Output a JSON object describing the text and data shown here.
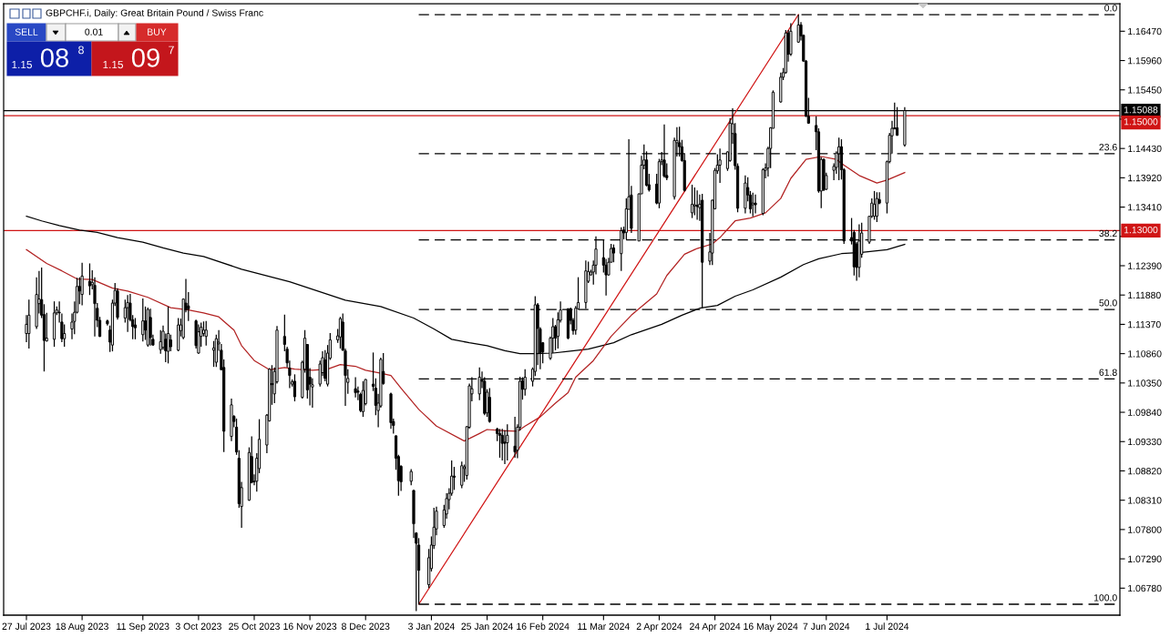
{
  "chart_data": {
    "type": "candlestick",
    "title": "GBPCHF.i, Daily: Great Britain Pound / Swiss Franc",
    "color": "#000000",
    "x": [
      "2023-07-27",
      "2023-07-28",
      "2023-07-31",
      "2023-08-01",
      "2023-08-02",
      "2023-08-03",
      "2023-08-04",
      "2023-08-07",
      "2023-08-08",
      "2023-08-09",
      "2023-08-10",
      "2023-08-11",
      "2023-08-14",
      "2023-08-15",
      "2023-08-16",
      "2023-08-17",
      "2023-08-18",
      "2023-08-21",
      "2023-08-22",
      "2023-08-23",
      "2023-08-24",
      "2023-08-25",
      "2023-08-28",
      "2023-08-29",
      "2023-08-30",
      "2023-08-31",
      "2023-09-01",
      "2023-09-04",
      "2023-09-05",
      "2023-09-06",
      "2023-09-07",
      "2023-09-08",
      "2023-09-11",
      "2023-09-12",
      "2023-09-13",
      "2023-09-14",
      "2023-09-15",
      "2023-09-18",
      "2023-09-19",
      "2023-09-20",
      "2023-09-21",
      "2023-09-22",
      "2023-09-25",
      "2023-09-26",
      "2023-09-27",
      "2023-09-28",
      "2023-09-29",
      "2023-10-02",
      "2023-10-03",
      "2023-10-04",
      "2023-10-05",
      "2023-10-06",
      "2023-10-09",
      "2023-10-10",
      "2023-10-11",
      "2023-10-12",
      "2023-10-13",
      "2023-10-16",
      "2023-10-17",
      "2023-10-18",
      "2023-10-19",
      "2023-10-20",
      "2023-10-23",
      "2023-10-24",
      "2023-10-25",
      "2023-10-26",
      "2023-10-27",
      "2023-10-30",
      "2023-10-31",
      "2023-11-01",
      "2023-11-02",
      "2023-11-03",
      "2023-11-06",
      "2023-11-07",
      "2023-11-08",
      "2023-11-09",
      "2023-11-10",
      "2023-11-13",
      "2023-11-14",
      "2023-11-15",
      "2023-11-16",
      "2023-11-17",
      "2023-11-20",
      "2023-11-21",
      "2023-11-22",
      "2023-11-23",
      "2023-11-24",
      "2023-11-27",
      "2023-11-28",
      "2023-11-29",
      "2023-11-30",
      "2023-12-01",
      "2023-12-04",
      "2023-12-05",
      "2023-12-06",
      "2023-12-07",
      "2023-12-08",
      "2023-12-11",
      "2023-12-12",
      "2023-12-13",
      "2023-12-14",
      "2023-12-15",
      "2023-12-18",
      "2023-12-19",
      "2023-12-20",
      "2023-12-21",
      "2023-12-22",
      "2023-12-26",
      "2023-12-27",
      "2023-12-28",
      "2023-12-29",
      "2024-01-02",
      "2024-01-03",
      "2024-01-04",
      "2024-01-05",
      "2024-01-08",
      "2024-01-09",
      "2024-01-10",
      "2024-01-11",
      "2024-01-12",
      "2024-01-15",
      "2024-01-16",
      "2024-01-17",
      "2024-01-18",
      "2024-01-19",
      "2024-01-22",
      "2024-01-23",
      "2024-01-24",
      "2024-01-25",
      "2024-01-26",
      "2024-01-29",
      "2024-01-30",
      "2024-01-31",
      "2024-02-01",
      "2024-02-02",
      "2024-02-05",
      "2024-02-06",
      "2024-02-07",
      "2024-02-08",
      "2024-02-09",
      "2024-02-12",
      "2024-02-13",
      "2024-02-14",
      "2024-02-15",
      "2024-02-16",
      "2024-02-19",
      "2024-02-20",
      "2024-02-21",
      "2024-02-22",
      "2024-02-23",
      "2024-02-26",
      "2024-02-27",
      "2024-02-28",
      "2024-02-29",
      "2024-03-01",
      "2024-03-04",
      "2024-03-05",
      "2024-03-06",
      "2024-03-07",
      "2024-03-08",
      "2024-03-11",
      "2024-03-12",
      "2024-03-13",
      "2024-03-14",
      "2024-03-15",
      "2024-03-18",
      "2024-03-19",
      "2024-03-20",
      "2024-03-21",
      "2024-03-22",
      "2024-03-25",
      "2024-03-26",
      "2024-03-27",
      "2024-03-28",
      "2024-03-29",
      "2024-04-01",
      "2024-04-02",
      "2024-04-03",
      "2024-04-04",
      "2024-04-05",
      "2024-04-08",
      "2024-04-09",
      "2024-04-10",
      "2024-04-11",
      "2024-04-12",
      "2024-04-15",
      "2024-04-16",
      "2024-04-17",
      "2024-04-18",
      "2024-04-19",
      "2024-04-22",
      "2024-04-23",
      "2024-04-24",
      "2024-04-25",
      "2024-04-26",
      "2024-04-29",
      "2024-04-30",
      "2024-05-01",
      "2024-05-02",
      "2024-05-03",
      "2024-05-06",
      "2024-05-07",
      "2024-05-08",
      "2024-05-09",
      "2024-05-10",
      "2024-05-13",
      "2024-05-14",
      "2024-05-15",
      "2024-05-16",
      "2024-05-17",
      "2024-05-20",
      "2024-05-21",
      "2024-05-22",
      "2024-05-23",
      "2024-05-24",
      "2024-05-27",
      "2024-05-28",
      "2024-05-29",
      "2024-05-30",
      "2024-05-31",
      "2024-06-03",
      "2024-06-04",
      "2024-06-05",
      "2024-06-06",
      "2024-06-07",
      "2024-06-10",
      "2024-06-11",
      "2024-06-12",
      "2024-06-13",
      "2024-06-14",
      "2024-06-17",
      "2024-06-18",
      "2024-06-19",
      "2024-06-20",
      "2024-06-21",
      "2024-06-24",
      "2024-06-25",
      "2024-06-26",
      "2024-06-27",
      "2024-06-28",
      "2024-07-01",
      "2024-07-02",
      "2024-07-03",
      "2024-07-04",
      "2024-07-05",
      "2024-07-08"
    ],
    "ohlc": [
      [
        1.1121,
        1.1153,
        1.1106,
        1.1137
      ],
      [
        1.1121,
        1.118,
        1.1095,
        1.1153
      ],
      [
        1.1133,
        1.1219,
        1.1129,
        1.1189
      ],
      [
        1.1173,
        1.123,
        1.1156,
        1.1181
      ],
      [
        1.118,
        1.1236,
        1.1148,
        1.1153
      ],
      [
        1.1154,
        1.1172,
        1.1055,
        1.1109
      ],
      [
        1.1108,
        1.1157,
        1.1107,
        1.1113
      ],
      [
        1.1111,
        1.1177,
        1.1098,
        1.1157
      ],
      [
        1.1157,
        1.1168,
        1.1153,
        1.1162
      ],
      [
        1.1158,
        1.1177,
        1.114,
        1.1157
      ],
      [
        1.1141,
        1.1156,
        1.1106,
        1.1112
      ],
      [
        1.1112,
        1.1137,
        1.1098,
        1.1121
      ],
      [
        1.1129,
        1.1156,
        1.1111,
        1.1141
      ],
      [
        1.1142,
        1.1177,
        1.112,
        1.1158
      ],
      [
        1.1158,
        1.1218,
        1.1156,
        1.1203
      ],
      [
        1.1203,
        1.1219,
        1.1172,
        1.1195
      ],
      [
        1.1189,
        1.1244,
        1.117,
        1.1221
      ],
      [
        1.1212,
        1.1243,
        1.1188,
        1.1204
      ],
      [
        1.1206,
        1.1231,
        1.1198,
        1.121
      ],
      [
        1.1205,
        1.1219,
        1.1116,
        1.1173
      ],
      [
        1.1165,
        1.1174,
        1.1132,
        1.1144
      ],
      [
        1.1144,
        1.115,
        1.1115,
        1.1116
      ],
      [
        1.1143,
        1.1145,
        1.1135,
        1.1138
      ],
      [
        1.1127,
        1.1135,
        1.1089,
        1.1106
      ],
      [
        1.1101,
        1.118,
        1.109,
        1.1174
      ],
      [
        1.1174,
        1.1209,
        1.1169,
        1.1196
      ],
      [
        1.1195,
        1.12,
        1.1145,
        1.1149
      ],
      [
        1.1148,
        1.118,
        1.114,
        1.1166
      ],
      [
        1.1166,
        1.1188,
        1.1124,
        1.1175
      ],
      [
        1.1174,
        1.119,
        1.1142,
        1.1145
      ],
      [
        1.1145,
        1.1153,
        1.1111,
        1.1133
      ],
      [
        1.1136,
        1.1148,
        1.1111,
        1.1131
      ],
      [
        1.1119,
        1.1182,
        1.1107,
        1.1143
      ],
      [
        1.1143,
        1.1168,
        1.111,
        1.1127
      ],
      [
        1.1101,
        1.1166,
        1.1098,
        1.1163
      ],
      [
        1.1149,
        1.1164,
        1.11,
        1.1114
      ],
      [
        1.1111,
        1.1119,
        1.11,
        1.1101
      ],
      [
        1.1093,
        1.1127,
        1.1086,
        1.1107
      ],
      [
        1.1097,
        1.1135,
        1.1093,
        1.1125
      ],
      [
        1.1111,
        1.1121,
        1.1071,
        1.1091
      ],
      [
        1.109,
        1.1168,
        1.1069,
        1.1121
      ],
      [
        1.111,
        1.1119,
        1.109,
        1.1098
      ],
      [
        1.1092,
        1.1148,
        1.109,
        1.1136
      ],
      [
        1.1126,
        1.1147,
        1.1116,
        1.1136
      ],
      [
        1.1114,
        1.1182,
        1.1111,
        1.1181
      ],
      [
        1.1174,
        1.1216,
        1.1158,
        1.1162
      ],
      [
        1.1169,
        1.1193,
        1.1143,
        1.1164
      ],
      [
        1.1143,
        1.1145,
        1.1095,
        1.11
      ],
      [
        1.1087,
        1.1137,
        1.1086,
        1.1124
      ],
      [
        1.1116,
        1.114,
        1.1098,
        1.1132
      ],
      [
        1.1121,
        1.1142,
        1.1116,
        1.1127
      ],
      [
        1.1116,
        1.1143,
        1.11,
        1.1127
      ],
      [
        1.1092,
        1.1108,
        1.1063,
        1.1096
      ],
      [
        1.1071,
        1.1119,
        1.1063,
        1.1112
      ],
      [
        1.1103,
        1.1127,
        1.1091,
        1.1106
      ],
      [
        1.1092,
        1.1103,
        1.1057,
        1.1058
      ],
      [
        1.1062,
        1.1076,
        1.0915,
        1.0951
      ],
      [
        1.0942,
        1.1008,
        1.0934,
        1.0997
      ],
      [
        1.0977,
        1.0979,
        1.0958,
        1.0968
      ],
      [
        1.0958,
        1.0973,
        1.091,
        1.0915
      ],
      [
        1.0904,
        1.0918,
        1.0818,
        1.0825
      ],
      [
        1.082,
        1.0863,
        1.0783,
        1.0853
      ],
      [
        1.0831,
        1.0923,
        1.083,
        1.0914
      ],
      [
        1.0907,
        1.0942,
        1.086,
        1.0862
      ],
      [
        1.0864,
        1.0876,
        1.0857,
        1.0863
      ],
      [
        1.0864,
        1.0913,
        1.0846,
        1.0904
      ],
      [
        1.0886,
        1.0972,
        1.0878,
        1.0937
      ],
      [
        1.0927,
        1.0981,
        1.0913,
        1.0979
      ],
      [
        1.0969,
        1.1061,
        1.0968,
        1.1059
      ],
      [
        1.1034,
        1.1066,
        1.0997,
        1.1032
      ],
      [
        1.1016,
        1.1062,
        1.1,
        1.1055
      ],
      [
        1.1037,
        1.1134,
        1.1034,
        1.1127
      ],
      [
        1.1116,
        1.1154,
        1.109,
        1.1102
      ],
      [
        1.1094,
        1.1098,
        1.1062,
        1.107
      ],
      [
        1.1061,
        1.1074,
        1.1026,
        1.1048
      ],
      [
        1.1033,
        1.1041,
        1.1029,
        1.1037
      ],
      [
        1.1038,
        1.105,
        1.1003,
        1.1011
      ],
      [
        1.101,
        1.1074,
        1.1008,
        1.1071
      ],
      [
        1.1059,
        1.1127,
        1.1053,
        1.1113
      ],
      [
        1.1102,
        1.1103,
        1.1008,
        1.1023
      ],
      [
        1.1045,
        1.1061,
        1.0996,
        1.1033
      ],
      [
        1.1028,
        1.1043,
        1.0992,
        1.1032
      ],
      [
        1.1033,
        1.1074,
        1.1029,
        1.1068
      ],
      [
        1.1053,
        1.109,
        1.1047,
        1.1079
      ],
      [
        1.1075,
        1.1092,
        1.1038,
        1.1043
      ],
      [
        1.1033,
        1.1101,
        1.1029,
        1.1087
      ],
      [
        1.1078,
        1.1122,
        1.1075,
        1.111
      ],
      [
        1.111,
        1.1129,
        1.1105,
        1.1117
      ],
      [
        1.1115,
        1.115,
        1.1095,
        1.1147
      ],
      [
        1.1141,
        1.1156,
        1.1091,
        1.1092
      ],
      [
        1.1091,
        1.1095,
        1.0995,
        1.1048
      ],
      [
        1.1036,
        1.1059,
        1.1016,
        1.1043
      ],
      [
        1.1025,
        1.1045,
        1.101,
        1.1018
      ],
      [
        1.1021,
        1.1029,
        1.1005,
        1.1019
      ],
      [
        1.1015,
        1.1018,
        1.0984,
        1.0987
      ],
      [
        1.0985,
        1.1038,
        1.0976,
        1.1022
      ],
      [
        1.0999,
        1.1042,
        1.0996,
        1.1041
      ],
      [
        1.1033,
        1.1088,
        1.1021,
        1.1029
      ],
      [
        1.1026,
        1.1043,
        1.0979,
        1.0996
      ],
      [
        1.0987,
        1.1016,
        1.0958,
        1.1
      ],
      [
        1.0995,
        1.1079,
        1.0992,
        1.1076
      ],
      [
        1.1055,
        1.1087,
        1.1032,
        1.1034
      ],
      [
        1.1016,
        1.1018,
        1.0955,
        1.0966
      ],
      [
        1.0968,
        1.0973,
        1.0947,
        1.0961
      ],
      [
        1.0943,
        1.0944,
        1.0884,
        1.0904
      ],
      [
        1.0907,
        1.091,
        1.0839,
        1.0865
      ],
      [
        1.089,
        1.0892,
        1.0847,
        1.0863
      ],
      [
        1.0864,
        1.0885,
        1.0857,
        1.0881
      ],
      [
        1.0848,
        1.0849,
        1.0765,
        1.079
      ],
      [
        1.0774,
        1.0775,
        1.0638,
        1.0756
      ],
      [
        1.0753,
        1.0765,
        1.065,
        1.0709
      ],
      [
        1.0684,
        1.0746,
        1.0678,
        1.0731
      ],
      [
        1.0712,
        1.0768,
        1.0707,
        1.0753
      ],
      [
        1.0752,
        1.0818,
        1.0746,
        1.0784
      ],
      [
        1.0781,
        1.082,
        1.077,
        1.0812
      ],
      [
        1.0787,
        1.0823,
        1.0783,
        1.0814
      ],
      [
        1.0807,
        1.0843,
        1.0799,
        1.0834
      ],
      [
        1.0832,
        1.0852,
        1.0815,
        1.0843
      ],
      [
        1.0843,
        1.09,
        1.0839,
        1.0873
      ],
      [
        1.0873,
        1.0889,
        1.0849,
        1.0871
      ],
      [
        1.0857,
        1.0898,
        1.0852,
        1.0891
      ],
      [
        1.0886,
        1.0893,
        1.0863,
        1.0889
      ],
      [
        1.0874,
        1.096,
        1.0867,
        1.0959
      ],
      [
        1.0958,
        1.1034,
        1.0955,
        1.103
      ],
      [
        1.1016,
        1.1045,
        1.1003,
        1.1025
      ],
      [
        1.1016,
        1.1062,
        1.1005,
        1.1045
      ],
      [
        1.1041,
        1.1055,
        1.1026,
        1.1038
      ],
      [
        1.1038,
        1.1045,
        1.0979,
        1.0982
      ],
      [
        1.0983,
        1.1024,
        1.0976,
        1.1019
      ],
      [
        1.101,
        1.1026,
        1.0966,
        1.0968
      ],
      [
        1.0955,
        1.0957,
        1.0934,
        1.0947
      ],
      [
        1.0947,
        1.0955,
        1.0905,
        1.0944
      ],
      [
        1.0944,
        1.0955,
        1.09,
        1.093
      ],
      [
        1.0932,
        1.0953,
        1.0894,
        1.093
      ],
      [
        1.0931,
        1.0963,
        1.09,
        1.0944
      ],
      [
        1.0925,
        1.0976,
        1.0905,
        1.0915
      ],
      [
        1.0918,
        1.0963,
        1.0904,
        1.0958
      ],
      [
        1.0958,
        1.1046,
        1.0952,
        1.1038
      ],
      [
        1.1039,
        1.1045,
        1.1006,
        1.1024
      ],
      [
        1.1024,
        1.1059,
        1.1013,
        1.1045
      ],
      [
        1.1038,
        1.1062,
        1.1029,
        1.1059
      ],
      [
        1.1055,
        1.1186,
        1.1047,
        1.1171
      ],
      [
        1.1171,
        1.1174,
        1.1066,
        1.113
      ],
      [
        1.1129,
        1.1132,
        1.1059,
        1.1087
      ],
      [
        1.1105,
        1.1106,
        1.1069,
        1.1089
      ],
      [
        1.1078,
        1.1116,
        1.1075,
        1.1113
      ],
      [
        1.1113,
        1.1148,
        1.1087,
        1.1133
      ],
      [
        1.1133,
        1.1136,
        1.1092,
        1.1113
      ],
      [
        1.1116,
        1.1158,
        1.1095,
        1.1145
      ],
      [
        1.1144,
        1.1177,
        1.114,
        1.1162
      ],
      [
        1.1164,
        1.1165,
        1.1111,
        1.1113
      ],
      [
        1.1164,
        1.1166,
        1.1137,
        1.1144
      ],
      [
        1.1144,
        1.1148,
        1.1119,
        1.1126
      ],
      [
        1.1127,
        1.1169,
        1.1119,
        1.1165
      ],
      [
        1.1164,
        1.1219,
        1.1164,
        1.1175
      ],
      [
        1.1175,
        1.1248,
        1.1164,
        1.123
      ],
      [
        1.1212,
        1.1246,
        1.1209,
        1.1229
      ],
      [
        1.1223,
        1.1232,
        1.1222,
        1.1228
      ],
      [
        1.1228,
        1.1248,
        1.1206,
        1.124
      ],
      [
        1.124,
        1.129,
        1.1224,
        1.1268
      ],
      [
        1.1253,
        1.1284,
        1.1227,
        1.124
      ],
      [
        1.124,
        1.1251,
        1.1187,
        1.1223
      ],
      [
        1.1223,
        1.1253,
        1.1222,
        1.1245
      ],
      [
        1.1245,
        1.1277,
        1.1245,
        1.1269
      ],
      [
        1.127,
        1.1276,
        1.1245,
        1.1261
      ],
      [
        1.126,
        1.1306,
        1.123,
        1.13
      ],
      [
        1.1301,
        1.1307,
        1.1285,
        1.1296
      ],
      [
        1.1297,
        1.1356,
        1.1285,
        1.1338
      ],
      [
        1.1337,
        1.1459,
        1.1337,
        1.1359
      ],
      [
        1.1362,
        1.1378,
        1.1296,
        1.1304
      ],
      [
        1.1282,
        1.1365,
        1.1282,
        1.1364
      ],
      [
        1.1364,
        1.143,
        1.1364,
        1.1414
      ],
      [
        1.1414,
        1.145,
        1.1407,
        1.1423
      ],
      [
        1.1423,
        1.1438,
        1.1377,
        1.1379
      ],
      [
        1.138,
        1.1399,
        1.1368,
        1.1371
      ],
      [
        1.1381,
        1.1399,
        1.1346,
        1.1348
      ],
      [
        1.1348,
        1.1425,
        1.1339,
        1.142
      ],
      [
        1.142,
        1.1437,
        1.1414,
        1.1423
      ],
      [
        1.1423,
        1.1485,
        1.1392,
        1.1395
      ],
      [
        1.1396,
        1.1417,
        1.1388,
        1.1392
      ],
      [
        1.1359,
        1.1462,
        1.1354,
        1.1457
      ],
      [
        1.1453,
        1.148,
        1.1429,
        1.1457
      ],
      [
        1.1453,
        1.1481,
        1.1429,
        1.1446
      ],
      [
        1.1446,
        1.1458,
        1.142,
        1.1422
      ],
      [
        1.1422,
        1.1435,
        1.1368,
        1.137
      ],
      [
        1.1331,
        1.138,
        1.1322,
        1.1346
      ],
      [
        1.1343,
        1.1375,
        1.1327,
        1.1345
      ],
      [
        1.1344,
        1.137,
        1.1319,
        1.1342
      ],
      [
        1.134,
        1.1363,
        1.1317,
        1.1346
      ],
      [
        1.1353,
        1.1364,
        1.1165,
        1.1245
      ],
      [
        1.1247,
        1.1296,
        1.124,
        1.1263
      ],
      [
        1.1261,
        1.1354,
        1.124,
        1.1353
      ],
      [
        1.1338,
        1.1409,
        1.1337,
        1.1405
      ],
      [
        1.1404,
        1.1433,
        1.1399,
        1.1414
      ],
      [
        1.1414,
        1.1443,
        1.1383,
        1.1423
      ],
      [
        1.1408,
        1.1438,
        1.1404,
        1.1437
      ],
      [
        1.1422,
        1.1496,
        1.142,
        1.1487
      ],
      [
        1.1469,
        1.1513,
        1.1451,
        1.1486
      ],
      [
        1.1469,
        1.1487,
        1.1406,
        1.1413
      ],
      [
        1.1412,
        1.1417,
        1.1332,
        1.1339
      ],
      [
        1.1339,
        1.1396,
        1.133,
        1.1383
      ],
      [
        1.1375,
        1.1393,
        1.1351,
        1.1362
      ],
      [
        1.1362,
        1.1369,
        1.133,
        1.1338
      ],
      [
        1.1345,
        1.1366,
        1.1325,
        1.1348
      ],
      [
        1.1348,
        1.1363,
        1.133,
        1.1345
      ],
      [
        1.133,
        1.1409,
        1.1327,
        1.1406
      ],
      [
        1.1405,
        1.1417,
        1.1391,
        1.1409
      ],
      [
        1.1409,
        1.1446,
        1.1394,
        1.1443
      ],
      [
        1.1443,
        1.148,
        1.1409,
        1.1479
      ],
      [
        1.1478,
        1.1544,
        1.1478,
        1.1541
      ],
      [
        1.1524,
        1.1575,
        1.1523,
        1.1567
      ],
      [
        1.1567,
        1.1583,
        1.1562,
        1.1575
      ],
      [
        1.1575,
        1.1649,
        1.1573,
        1.1644
      ],
      [
        1.1644,
        1.1649,
        1.1594,
        1.1607
      ],
      [
        1.1607,
        1.1661,
        1.1604,
        1.1647
      ],
      [
        1.1628,
        1.1676,
        1.1627,
        1.1658
      ],
      [
        1.1658,
        1.1663,
        1.1631,
        1.1639
      ],
      [
        1.164,
        1.1641,
        1.1594,
        1.1595
      ],
      [
        1.1595,
        1.1597,
        1.1498,
        1.1499
      ],
      [
        1.1499,
        1.1531,
        1.1486,
        1.1487
      ],
      [
        1.1483,
        1.1499,
        1.144,
        1.1472
      ],
      [
        1.1472,
        1.1478,
        1.1366,
        1.1369
      ],
      [
        1.1369,
        1.1428,
        1.1339,
        1.1424
      ],
      [
        1.1424,
        1.1426,
        1.1369,
        1.1371
      ],
      [
        1.1372,
        1.1401,
        1.1371,
        1.1396
      ],
      [
        1.1405,
        1.1417,
        1.1388,
        1.1412
      ],
      [
        1.141,
        1.1438,
        1.1399,
        1.1435
      ],
      [
        1.1434,
        1.1462,
        1.1388,
        1.1446
      ],
      [
        1.1446,
        1.1459,
        1.1389,
        1.1406
      ],
      [
        1.1406,
        1.1409,
        1.1277,
        1.1282
      ],
      [
        1.1288,
        1.1322,
        1.1276,
        1.1282
      ],
      [
        1.1297,
        1.1301,
        1.1222,
        1.1237
      ],
      [
        1.1277,
        1.128,
        1.1213,
        1.1236
      ],
      [
        1.1236,
        1.1311,
        1.1219,
        1.1282
      ],
      [
        1.1259,
        1.1314,
        1.1253,
        1.1296
      ],
      [
        1.128,
        1.1325,
        1.1277,
        1.1325
      ],
      [
        1.1325,
        1.1356,
        1.1322,
        1.1348
      ],
      [
        1.1325,
        1.1369,
        1.1319,
        1.1346
      ],
      [
        1.1325,
        1.1367,
        1.1315,
        1.1356
      ],
      [
        1.1354,
        1.1367,
        1.1346,
        1.1348
      ],
      [
        1.1348,
        1.1422,
        1.133,
        1.142
      ],
      [
        1.142,
        1.147,
        1.1417,
        1.1466
      ],
      [
        1.1465,
        1.1491,
        1.1434,
        1.1478
      ],
      [
        1.1479,
        1.1523,
        1.1477,
        1.1477
      ],
      [
        1.1479,
        1.1515,
        1.1465,
        1.1466
      ],
      [
        1.1449,
        1.1515,
        1.1446,
        1.1509
      ]
    ],
    "series": [
      {
        "type": "line",
        "color": "#000000",
        "x": [
          "2023-07-27",
          "2023-08-02",
          "2023-08-09",
          "2023-08-17",
          "2023-08-24",
          "2023-09-01",
          "2023-09-11",
          "2023-09-19",
          "2023-09-27",
          "2023-10-05",
          "2023-10-20",
          "2023-11-08",
          "2023-11-30",
          "2023-12-14",
          "2023-12-27",
          "2024-01-04",
          "2024-01-11",
          "2024-01-18",
          "2024-01-25",
          "2024-02-01",
          "2024-02-07",
          "2024-02-13",
          "2024-02-20",
          "2024-02-26",
          "2024-03-05",
          "2024-03-15",
          "2024-03-22",
          "2024-04-03",
          "2024-04-11",
          "2024-04-18",
          "2024-04-25",
          "2024-05-02",
          "2024-05-09",
          "2024-05-20",
          "2024-05-29",
          "2024-06-04",
          "2024-06-13",
          "2024-06-21",
          "2024-07-01",
          "2024-07-08"
        ],
        "values": [
          1.1325,
          1.1317,
          1.1309,
          1.1301,
          1.1297,
          1.1288,
          1.128,
          1.127,
          1.1261,
          1.1255,
          1.1233,
          1.1211,
          1.1179,
          1.1168,
          1.1148,
          1.1129,
          1.1111,
          1.1105,
          1.11,
          1.1091,
          1.1086,
          1.1086,
          1.1087,
          1.109,
          1.1094,
          1.1105,
          1.1119,
          1.1137,
          1.1153,
          1.1165,
          1.117,
          1.1186,
          1.1197,
          1.1219,
          1.1241,
          1.1251,
          1.126,
          1.1262,
          1.1267,
          1.1276
        ]
      },
      {
        "type": "line",
        "color": "#b22222",
        "x": [
          "2023-07-27",
          "2023-08-04",
          "2023-08-10",
          "2023-08-16",
          "2023-08-22",
          "2023-08-30",
          "2023-09-05",
          "2023-09-13",
          "2023-09-22",
          "2023-09-29",
          "2023-10-05",
          "2023-10-11",
          "2023-10-17",
          "2023-10-20",
          "2023-10-25",
          "2023-10-31",
          "2023-11-06",
          "2023-11-10",
          "2023-11-17",
          "2023-11-23",
          "2023-11-28",
          "2023-12-04",
          "2023-12-08",
          "2023-12-14",
          "2023-12-18",
          "2023-12-22",
          "2023-12-29",
          "2024-01-05",
          "2024-01-16",
          "2024-01-22",
          "2024-01-25",
          "2024-02-01",
          "2024-02-06",
          "2024-02-09",
          "2024-02-15",
          "2024-02-21",
          "2024-02-26",
          "2024-02-29",
          "2024-03-07",
          "2024-03-14",
          "2024-03-22",
          "2024-04-01",
          "2024-04-05",
          "2024-04-12",
          "2024-04-17",
          "2024-04-23",
          "2024-04-26",
          "2024-05-02",
          "2024-05-08",
          "2024-05-14",
          "2024-05-20",
          "2024-05-24",
          "2024-05-30",
          "2024-06-05",
          "2024-06-11",
          "2024-06-14",
          "2024-06-20",
          "2024-06-27",
          "2024-07-01",
          "2024-07-08"
        ],
        "values": [
          1.1267,
          1.1243,
          1.123,
          1.1216,
          1.1215,
          1.12,
          1.1195,
          1.1184,
          1.1166,
          1.1162,
          1.1157,
          1.115,
          1.1127,
          1.11,
          1.1074,
          1.1058,
          1.1062,
          1.1059,
          1.1057,
          1.1059,
          1.1067,
          1.1064,
          1.1057,
          1.1052,
          1.1048,
          1.1026,
          1.0989,
          1.096,
          1.0934,
          1.0947,
          1.0954,
          1.0952,
          1.0951,
          1.096,
          1.0976,
          1.1,
          1.1018,
          1.1045,
          1.1074,
          1.1116,
          1.1153,
          1.119,
          1.1222,
          1.1259,
          1.1269,
          1.1277,
          1.1288,
          1.1317,
          1.1322,
          1.1331,
          1.1356,
          1.1391,
          1.1424,
          1.1429,
          1.1424,
          1.1414,
          1.1396,
          1.1383,
          1.1388,
          1.1401
        ]
      },
      {
        "type": "line",
        "color": "#d01414",
        "x": [
          "2023-12-29",
          "2024-05-27"
        ],
        "values": [
          1.065,
          1.1676
        ]
      },
      {
        "type": "line",
        "color": "#000000",
        "line_style": "dashed",
        "x": [
          "2023-12-29",
          "2024-10-01"
        ],
        "values": [
          1.1676,
          1.1676
        ]
      },
      {
        "type": "line",
        "color": "#000000",
        "line_style": "dashed",
        "x": [
          "2023-12-29",
          "2024-10-01"
        ],
        "values": [
          1.1434,
          1.1434
        ]
      },
      {
        "type": "line",
        "color": "#000000",
        "line_style": "dashed",
        "x": [
          "2023-12-29",
          "2024-10-01"
        ],
        "values": [
          1.1284,
          1.1284
        ]
      },
      {
        "type": "line",
        "color": "#000000",
        "line_style": "dashed",
        "x": [
          "2023-12-29",
          "2024-10-01"
        ],
        "values": [
          1.1163,
          1.1163
        ]
      },
      {
        "type": "line",
        "color": "#000000",
        "line_style": "dashed",
        "x": [
          "2023-12-29",
          "2024-10-01"
        ],
        "values": [
          1.1042,
          1.1042
        ]
      },
      {
        "type": "line",
        "color": "#000000",
        "line_style": "dashed",
        "x": [
          "2023-12-29",
          "2024-10-01"
        ],
        "values": [
          1.065,
          1.065
        ]
      }
    ],
    "xlim": [
      "2023-07-18",
      "2024-10-01"
    ],
    "xticks": [
      {
        "value": "2023-07-27",
        "label": "27 Jul 2023"
      },
      {
        "value": "2023-08-18",
        "label": "18 Aug 2023"
      },
      {
        "value": "2023-09-11",
        "label": "11 Sep 2023"
      },
      {
        "value": "2023-10-03",
        "label": "3 Oct 2023"
      },
      {
        "value": "2023-10-25",
        "label": "25 Oct 2023"
      },
      {
        "value": "2023-11-16",
        "label": "16 Nov 2023"
      },
      {
        "value": "2023-12-08",
        "label": "8 Dec 2023"
      },
      {
        "value": "2024-01-03",
        "label": "3 Jan 2024"
      },
      {
        "value": "2024-01-25",
        "label": "25 Jan 2024"
      },
      {
        "value": "2024-02-16",
        "label": "16 Feb 2024"
      },
      {
        "value": "2024-03-11",
        "label": "11 Mar 2024"
      },
      {
        "value": "2024-04-02",
        "label": "2 Apr 2024"
      },
      {
        "value": "2024-04-24",
        "label": "24 Apr 2024"
      },
      {
        "value": "2024-05-16",
        "label": "16 May 2024"
      },
      {
        "value": "2024-06-07",
        "label": "7 Jun 2024"
      },
      {
        "value": "2024-07-01",
        "label": "1 Jul 2024"
      }
    ],
    "ylim": [
      1.0631,
      1.1695
    ],
    "yticks": [
      {
        "value": 1.1647,
        "label": "1.16470"
      },
      {
        "value": 1.1596,
        "label": "1.15960"
      },
      {
        "value": 1.1545,
        "label": "1.15450"
      },
      {
        "value": 1.1494,
        "label": null
      },
      {
        "value": 1.1443,
        "label": "1.14430"
      },
      {
        "value": 1.1392,
        "label": "1.13920"
      },
      {
        "value": 1.1341,
        "label": "1.13410"
      },
      {
        "value": 1.129,
        "label": null
      },
      {
        "value": 1.1239,
        "label": "1.12390"
      },
      {
        "value": 1.1188,
        "label": "1.11880"
      },
      {
        "value": 1.1137,
        "label": "1.11370"
      },
      {
        "value": 1.1086,
        "label": "1.10860"
      },
      {
        "value": 1.1035,
        "label": "1.10350"
      },
      {
        "value": 1.0984,
        "label": "1.09840"
      },
      {
        "value": 1.0933,
        "label": "1.09330"
      },
      {
        "value": 1.0882,
        "label": "1.08820"
      },
      {
        "value": 1.0831,
        "label": "1.08310"
      },
      {
        "value": 1.078,
        "label": "1.07800"
      },
      {
        "value": 1.0729,
        "label": "1.07290"
      },
      {
        "value": 1.0678,
        "label": "1.06780"
      }
    ],
    "ref_lines": [
      {
        "axis": "y",
        "value": 1.15088,
        "label": "1.15088",
        "color": "#000000"
      },
      {
        "axis": "y",
        "value": 1.15,
        "label": "1.15000",
        "color": "#d01414"
      },
      {
        "axis": "y",
        "value": 1.13,
        "label": "1.13000",
        "color": "#d01414"
      }
    ],
    "annotations": [
      "SELL",
      "0.01",
      "BUY",
      "1.15",
      "08",
      "8",
      "1.15",
      "09",
      "7",
      {
        "text": "0.0",
        "x": "2024-10-01",
        "y": 1.1676
      },
      {
        "text": "23.6",
        "x": "2024-10-01",
        "y": 1.1434
      },
      {
        "text": "38.2",
        "x": "2024-10-01",
        "y": 1.1284
      },
      {
        "text": "50.0",
        "x": "2024-10-01",
        "y": 1.1163
      },
      {
        "text": "61.8",
        "x": "2024-10-01",
        "y": 1.1042
      },
      {
        "text": "100.0",
        "x": "2024-10-01",
        "y": 1.065
      }
    ]
  }
}
